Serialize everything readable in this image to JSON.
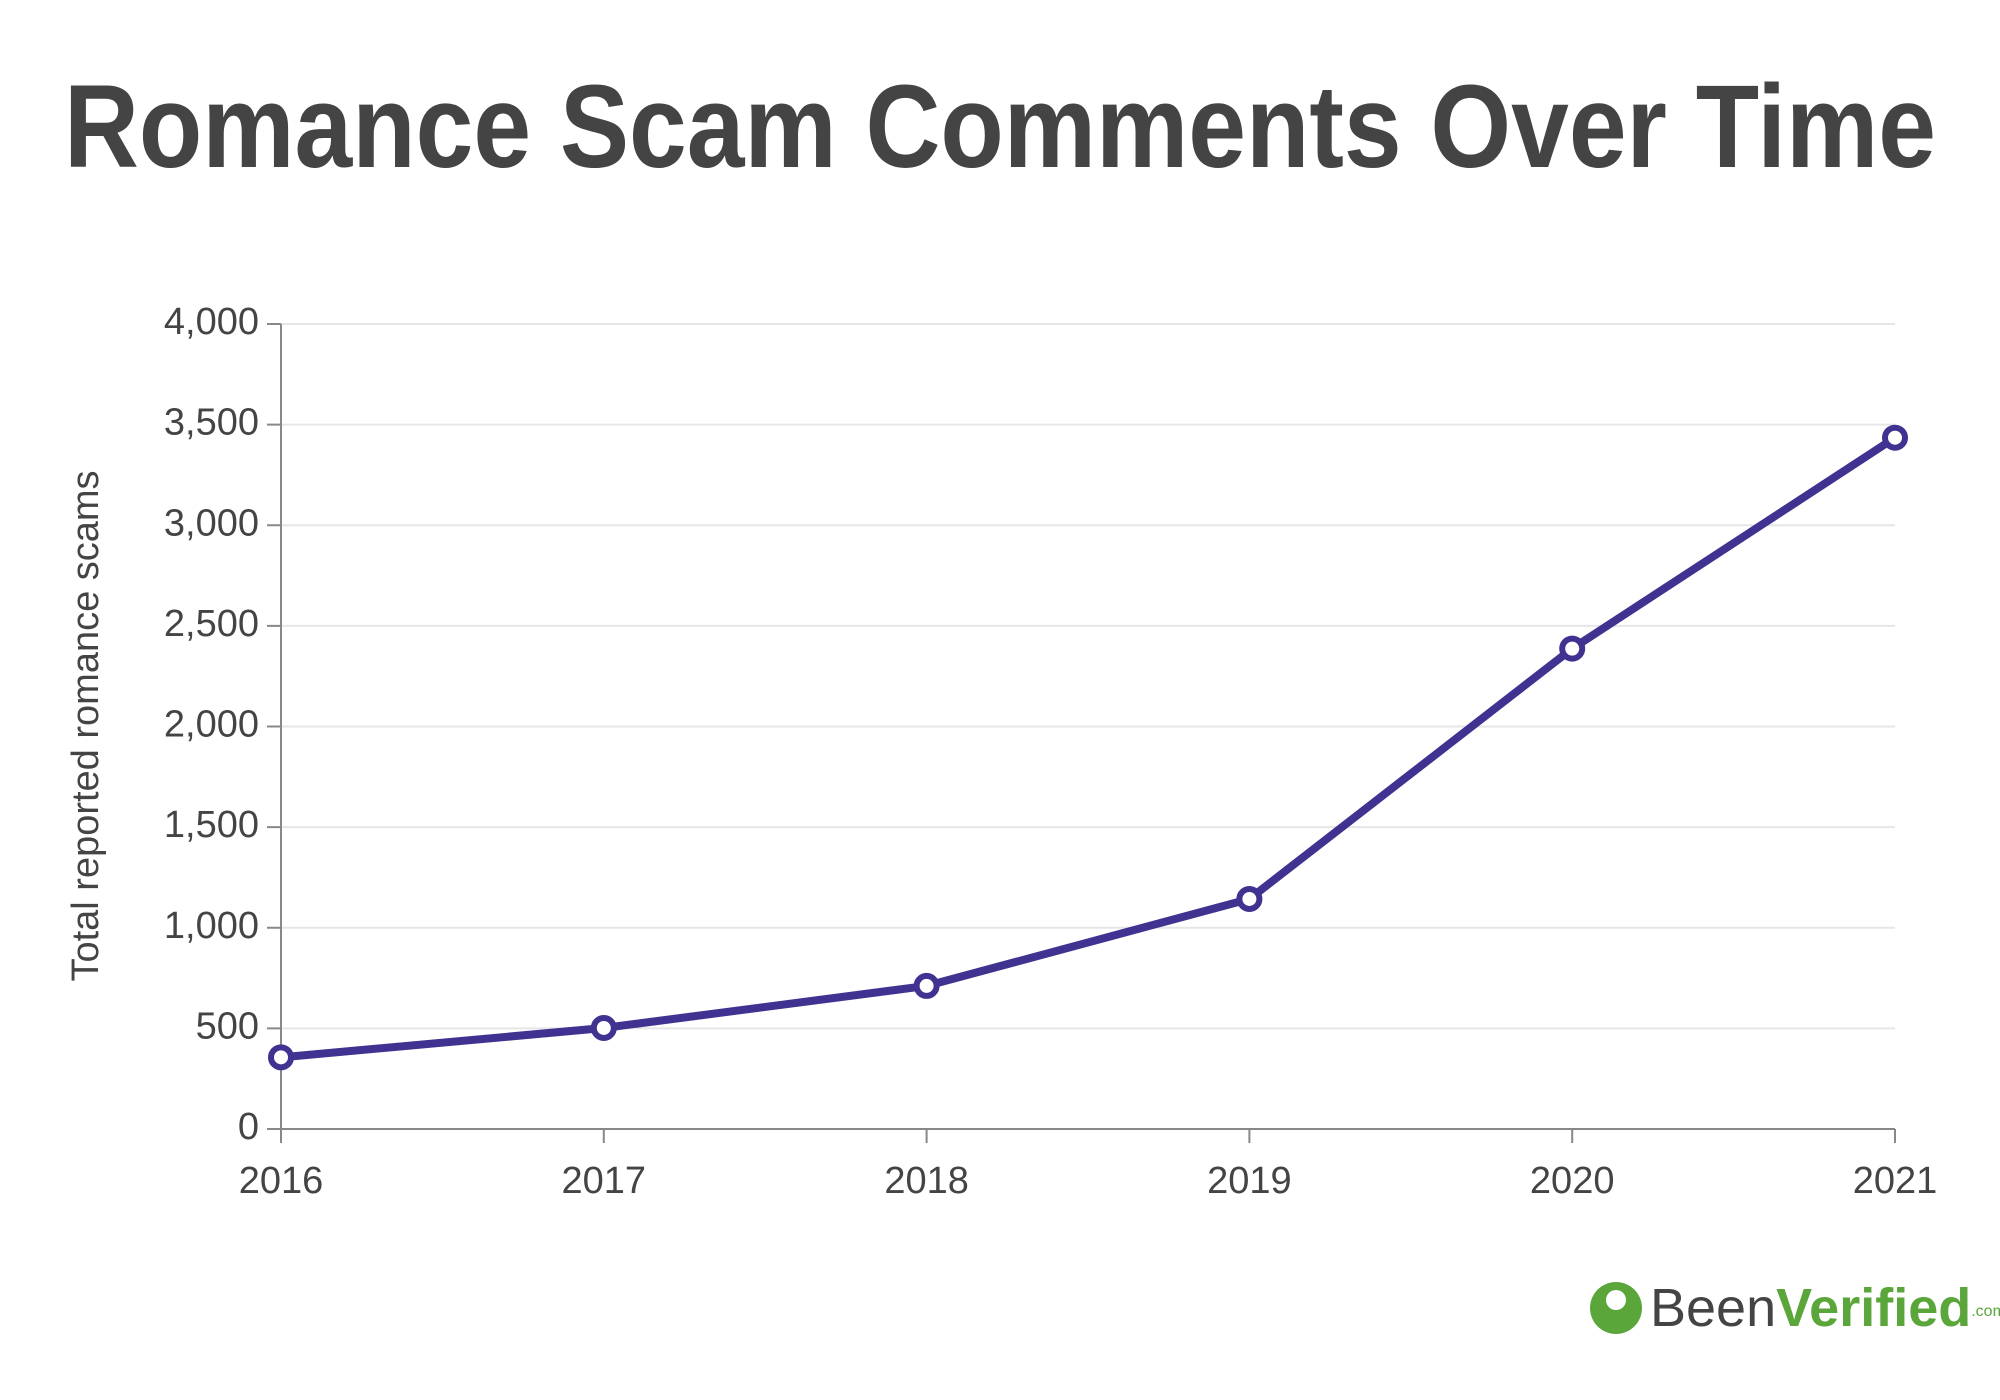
{
  "chart_data": {
    "type": "line",
    "title": "Romance Scam Comments Over Time",
    "y_label": "Total reported romance scams",
    "x": [
      2016,
      2017,
      2018,
      2019,
      2020,
      2021
    ],
    "xlim": [
      2016,
      2021
    ],
    "xticks": [
      2016,
      2017,
      2018,
      2019,
      2020,
      2021
    ],
    "series": [
      {
        "name": "Total reported romance scams",
        "color": "#3f3290",
        "values": [
          356,
          502,
          711,
          1143,
          2387,
          3435
        ]
      }
    ],
    "ylim": [
      0,
      4000
    ],
    "yticks": [
      0,
      500,
      {
        "value": 1000,
        "label": "1,000"
      },
      {
        "value": 1500,
        "label": "1,500"
      },
      {
        "value": 2000,
        "label": "2,000"
      },
      {
        "value": 2500,
        "label": "2,500"
      },
      {
        "value": 3000,
        "label": "3,000"
      },
      {
        "value": 3500,
        "label": "3,500"
      },
      {
        "value": 4000,
        "label": "4,000"
      }
    ],
    "grid": true
  },
  "logo": {
    "first": "Been",
    "second": "Verified",
    "suffix": ".com"
  }
}
